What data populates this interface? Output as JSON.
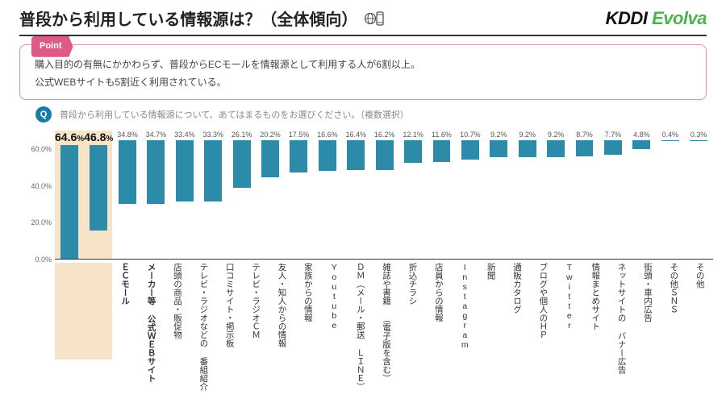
{
  "title": "普段から利用している情報源は？（全体傾向）",
  "logo": {
    "part1": "KDDI",
    "part2": "Evolva"
  },
  "point": {
    "tag": "Point",
    "line1": "購入目的の有無にかかわらず、普段からECモールを情報源として利用する人が6割以上。",
    "line2": "公式WEBサイトも5割近く利用されている。"
  },
  "question": {
    "badge": "Q",
    "text": "普段から利用している情報源について、あてはまるものをお選びください。（複数選択）"
  },
  "chart": {
    "type": "bar",
    "ylim": [
      0,
      70
    ],
    "yticks": [
      0,
      20,
      40,
      60
    ],
    "ytick_labels": [
      "0.0%",
      "20.0%",
      "40.0%",
      "60.0%"
    ],
    "bar_color": "#2b8ba8",
    "highlight_color": "#f7e3c7",
    "highlight_columns": [
      0,
      1
    ],
    "data": [
      {
        "label": "ＥＣモール",
        "value": 64.6,
        "strong": true
      },
      {
        "label": "メーカー等\n公式ＷＥＢサイト",
        "value": 46.8,
        "strong": true
      },
      {
        "label": "店頭の商品・販促物",
        "value": 34.8
      },
      {
        "label": "テレビ・ラジオなどの\n番組紹介",
        "value": 34.7
      },
      {
        "label": "口コミサイト・掲示板",
        "value": 33.4
      },
      {
        "label": "テレビ・ラジオＣＭ",
        "value": 33.3
      },
      {
        "label": "友人・知人からの情報",
        "value": 26.1
      },
      {
        "label": "家族からの情報",
        "value": 20.2
      },
      {
        "label": "Youtube",
        "value": 17.5
      },
      {
        "label": "ＤＭ︵メール・郵送\nＬＩＮＥ︶",
        "value": 16.6
      },
      {
        "label": "雑誌や書籍\n︵電子版を含む︶",
        "value": 16.4
      },
      {
        "label": "折込チラシ",
        "value": 16.2
      },
      {
        "label": "店員からの情報",
        "value": 12.1
      },
      {
        "label": "Instagram",
        "value": 11.6
      },
      {
        "label": "新聞",
        "value": 10.7
      },
      {
        "label": "通販カタログ",
        "value": 9.2
      },
      {
        "label": "ブログや個人のＨＰ",
        "value": 9.2
      },
      {
        "label": "Twitter",
        "value": 9.2
      },
      {
        "label": "情報まとめサイト",
        "value": 8.7
      },
      {
        "label": "ネットサイトの\nバナー広告",
        "value": 7.7
      },
      {
        "label": "街頭・車内広告",
        "value": 4.8
      },
      {
        "label": "その他ＳＮＳ",
        "value": 0.4
      },
      {
        "label": "その他",
        "value": 0.3
      }
    ]
  }
}
